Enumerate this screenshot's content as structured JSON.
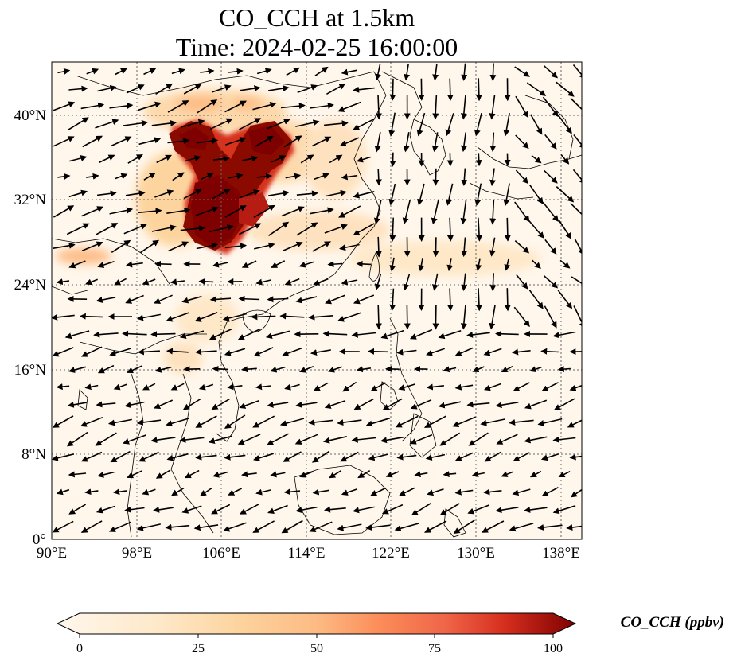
{
  "title_line1": "CO_CCH at 1.5km",
  "title_line2": "Time: 2024-02-25 16:00:00",
  "map": {
    "lon_range": [
      90,
      140
    ],
    "lat_range": [
      0,
      45
    ],
    "lon_ticks": [
      "90°E",
      "98°E",
      "106°E",
      "114°E",
      "122°E",
      "130°E",
      "138°E"
    ],
    "lat_ticks": [
      "0°",
      "8°N",
      "16°N",
      "24°N",
      "32°N",
      "40°N"
    ],
    "gridlines": true,
    "colormap": "OrRd"
  },
  "colorbar": {
    "label": "CO_CCH (ppbv)",
    "ticks": [
      "0",
      "25",
      "50",
      "75",
      "100"
    ],
    "range": [
      0,
      100
    ],
    "extend": "both"
  },
  "colors": {
    "low": "#fff7ec",
    "mid_low": "#fdd49e",
    "mid": "#fc8d59",
    "mid_high": "#d7301f",
    "high": "#7f0000"
  }
}
